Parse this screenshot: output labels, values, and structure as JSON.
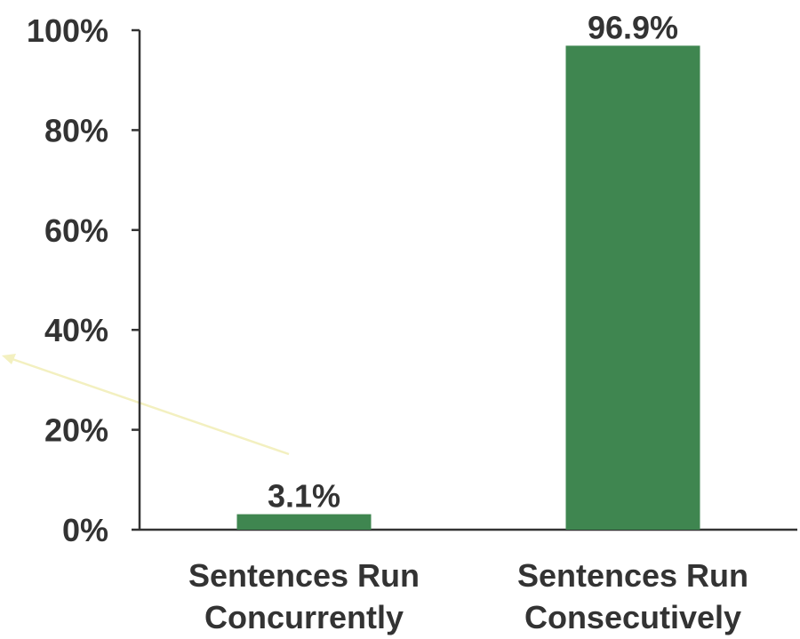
{
  "chart_data": {
    "type": "bar",
    "categories": [
      [
        "Sentences Run",
        "Concurrently"
      ],
      [
        "Sentences Run",
        "Consecutively"
      ]
    ],
    "values": [
      3.1,
      96.9
    ],
    "data_labels": [
      "3.1%",
      "96.9%"
    ],
    "ylim": [
      0,
      100
    ],
    "yticks": [
      0,
      20,
      40,
      60,
      80,
      100
    ],
    "ytick_labels": [
      "0%",
      "20%",
      "40%",
      "60%",
      "80%",
      "100%"
    ],
    "bar_color": "#3f8650",
    "grid": false,
    "legend": "none",
    "title": "",
    "xlabel": "",
    "ylabel": ""
  },
  "colors": {
    "bar": "#3f8650",
    "axis": "#333333",
    "text": "#333333",
    "annotation_arrow": "#f3f0c0"
  }
}
